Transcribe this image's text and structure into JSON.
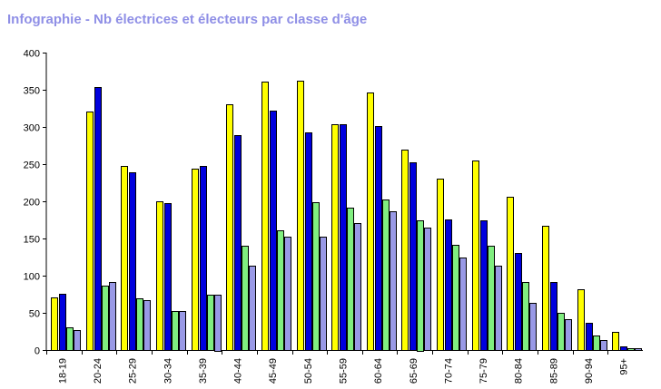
{
  "chart_data": {
    "type": "bar",
    "title": "Infographie - Nb électrices et électeurs par classe d'âge",
    "xlabel": "",
    "ylabel": "",
    "ylim": [
      0,
      400
    ],
    "yticks": [
      0,
      50,
      100,
      150,
      200,
      250,
      300,
      350,
      400
    ],
    "grid": false,
    "legend": "none",
    "categories": [
      "18-19",
      "20-24",
      "25-29",
      "30-34",
      "35-39",
      "40-44",
      "45-49",
      "50-54",
      "55-59",
      "60-64",
      "65-69",
      "70-74",
      "75-79",
      "80-84",
      "85-89",
      "90-94",
      "95+"
    ],
    "series": [
      {
        "color": "#ffff00",
        "values": [
          71,
          321,
          248,
          200,
          244,
          331,
          361,
          362,
          304,
          346,
          270,
          231,
          255,
          206,
          167,
          82,
          24
        ]
      },
      {
        "color": "#0000dd",
        "values": [
          76,
          354,
          239,
          197,
          248,
          289,
          322,
          293,
          304,
          301,
          252,
          176,
          174,
          130,
          91,
          36,
          5
        ]
      },
      {
        "color": "#80ee80",
        "values": [
          30,
          87,
          70,
          53,
          74,
          140,
          161,
          199,
          191,
          203,
          175,
          142,
          140,
          91,
          50,
          20,
          3
        ]
      },
      {
        "color": "#9999e6",
        "values": [
          27,
          91,
          67,
          52,
          75,
          113,
          152,
          153,
          171,
          187,
          165,
          124,
          113,
          63,
          41,
          14,
          2
        ]
      }
    ]
  }
}
